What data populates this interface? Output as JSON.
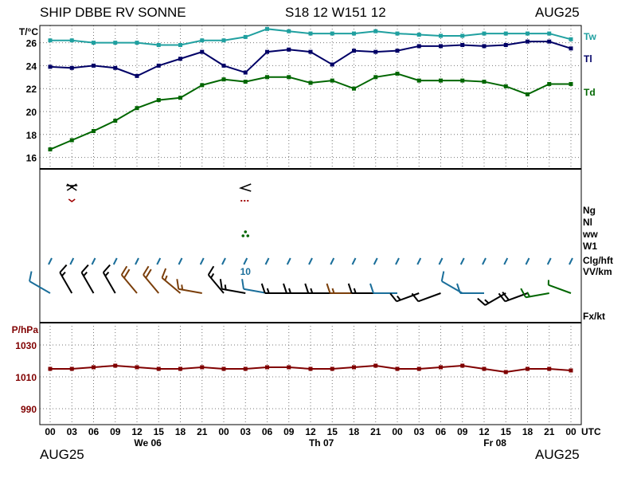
{
  "header": {
    "title": "SHIP DBBE RV SONNE",
    "position": "S18 12 W151 12",
    "month": "AUG25"
  },
  "footer": {
    "left": "AUG25",
    "right": "AUG25"
  },
  "colors": {
    "tw": "#20a0a0",
    "tl": "#000066",
    "td": "#006600",
    "pressure": "#800000",
    "cloud_bars": "#1a6e9a",
    "visibility": "#1a6e9a"
  },
  "chart_data": [
    {
      "type": "line",
      "panel": "temperature",
      "ylabel": "T/°C",
      "ylim": [
        15,
        27.5
      ],
      "yticks": [
        16,
        18,
        20,
        22,
        24,
        26
      ],
      "grid": true,
      "x_labels": [
        "00",
        "03",
        "06",
        "09",
        "12",
        "15",
        "18",
        "21",
        "00",
        "03",
        "06",
        "09",
        "12",
        "15",
        "18",
        "21",
        "00",
        "03",
        "06",
        "09",
        "12",
        "15",
        "18",
        "21",
        "00"
      ],
      "day_labels": [
        {
          "label": "We 06",
          "at_index": 4.5
        },
        {
          "label": "Th 07",
          "at_index": 12.5
        },
        {
          "label": "Fr 08",
          "at_index": 20.5
        }
      ],
      "x_unit": "UTC",
      "series": [
        {
          "name": "Tw",
          "color": "#20a0a0",
          "values": [
            26.2,
            26.2,
            26.0,
            26.0,
            26.0,
            25.8,
            25.8,
            26.2,
            26.2,
            26.5,
            27.2,
            27.0,
            26.8,
            26.8,
            26.8,
            27.0,
            26.8,
            26.7,
            26.6,
            26.6,
            26.8,
            26.8,
            26.8,
            26.8,
            26.3
          ]
        },
        {
          "name": "Tl",
          "color": "#000066",
          "values": [
            23.9,
            23.8,
            24.0,
            23.8,
            23.1,
            24.0,
            24.6,
            25.2,
            24.0,
            23.4,
            25.2,
            25.4,
            25.2,
            24.1,
            25.3,
            25.2,
            25.3,
            25.7,
            25.7,
            25.8,
            25.7,
            25.8,
            26.1,
            26.1,
            25.5
          ]
        },
        {
          "name": "Td",
          "color": "#006600",
          "values": [
            16.7,
            17.5,
            18.3,
            19.2,
            20.3,
            21.0,
            21.2,
            22.3,
            22.8,
            22.6,
            23.0,
            23.0,
            22.5,
            22.7,
            22.0,
            23.0,
            23.3,
            22.7,
            22.7,
            22.7,
            22.6,
            22.2,
            21.5,
            22.4,
            22.4
          ]
        }
      ]
    },
    {
      "type": "line",
      "panel": "pressure",
      "ylabel": "P/hPa",
      "ylim": [
        980,
        1044
      ],
      "yticks": [
        990,
        1010,
        1030
      ],
      "grid": true,
      "series": [
        {
          "name": "P",
          "color": "#800000",
          "values": [
            1015,
            1015,
            1016,
            1017,
            1016,
            1015,
            1015,
            1016,
            1015,
            1015,
            1016,
            1016,
            1015,
            1015,
            1016,
            1017,
            1015,
            1015,
            1016,
            1017,
            1015,
            1013,
            1015,
            1015,
            1014
          ]
        }
      ]
    }
  ],
  "middle_panel": {
    "right_labels": [
      "Ng",
      "Nl",
      "ww",
      "W1",
      "Clg/hft",
      "VV/km",
      "Fx/kt"
    ],
    "visibility_value": "10",
    "visibility_index": 9,
    "weather_symbol_indices": [
      1,
      9
    ],
    "wind": [
      {
        "dir": 300,
        "kt": 10,
        "color": "#1a6e9a"
      },
      {
        "dir": 330,
        "kt": 15,
        "color": "#000000"
      },
      {
        "dir": 330,
        "kt": 15,
        "color": "#000000"
      },
      {
        "dir": 330,
        "kt": 15,
        "color": "#000000"
      },
      {
        "dir": 320,
        "kt": 20,
        "color": "#7a3e0a"
      },
      {
        "dir": 320,
        "kt": 20,
        "color": "#7a3e0a"
      },
      {
        "dir": 310,
        "kt": 15,
        "color": "#7a3e0a"
      },
      {
        "dir": 280,
        "kt": 15,
        "color": "#7a3e0a"
      },
      {
        "dir": 320,
        "kt": 15,
        "color": "#000000"
      },
      {
        "dir": 280,
        "kt": 15,
        "color": "#000000"
      },
      {
        "dir": 280,
        "kt": 10,
        "color": "#1a6e9a"
      },
      {
        "dir": 270,
        "kt": 15,
        "color": "#000000"
      },
      {
        "dir": 270,
        "kt": 15,
        "color": "#000000"
      },
      {
        "dir": 270,
        "kt": 15,
        "color": "#000000"
      },
      {
        "dir": 270,
        "kt": 15,
        "color": "#7a3e0a"
      },
      {
        "dir": 270,
        "kt": 15,
        "color": "#000000"
      },
      {
        "dir": 270,
        "kt": 10,
        "color": "#1a6e9a"
      },
      {
        "dir": 250,
        "kt": 15,
        "color": "#000000"
      },
      {
        "dir": 250,
        "kt": 10,
        "color": "#000000"
      },
      {
        "dir": 300,
        "kt": 10,
        "color": "#1a6e9a"
      },
      {
        "dir": 270,
        "kt": 10,
        "color": "#1a6e9a"
      },
      {
        "dir": 240,
        "kt": 15,
        "color": "#000000"
      },
      {
        "dir": 250,
        "kt": 20,
        "color": "#000000"
      },
      {
        "dir": 260,
        "kt": 15,
        "color": "#006600"
      },
      {
        "dir": 290,
        "kt": 5,
        "color": "#006600"
      }
    ]
  }
}
